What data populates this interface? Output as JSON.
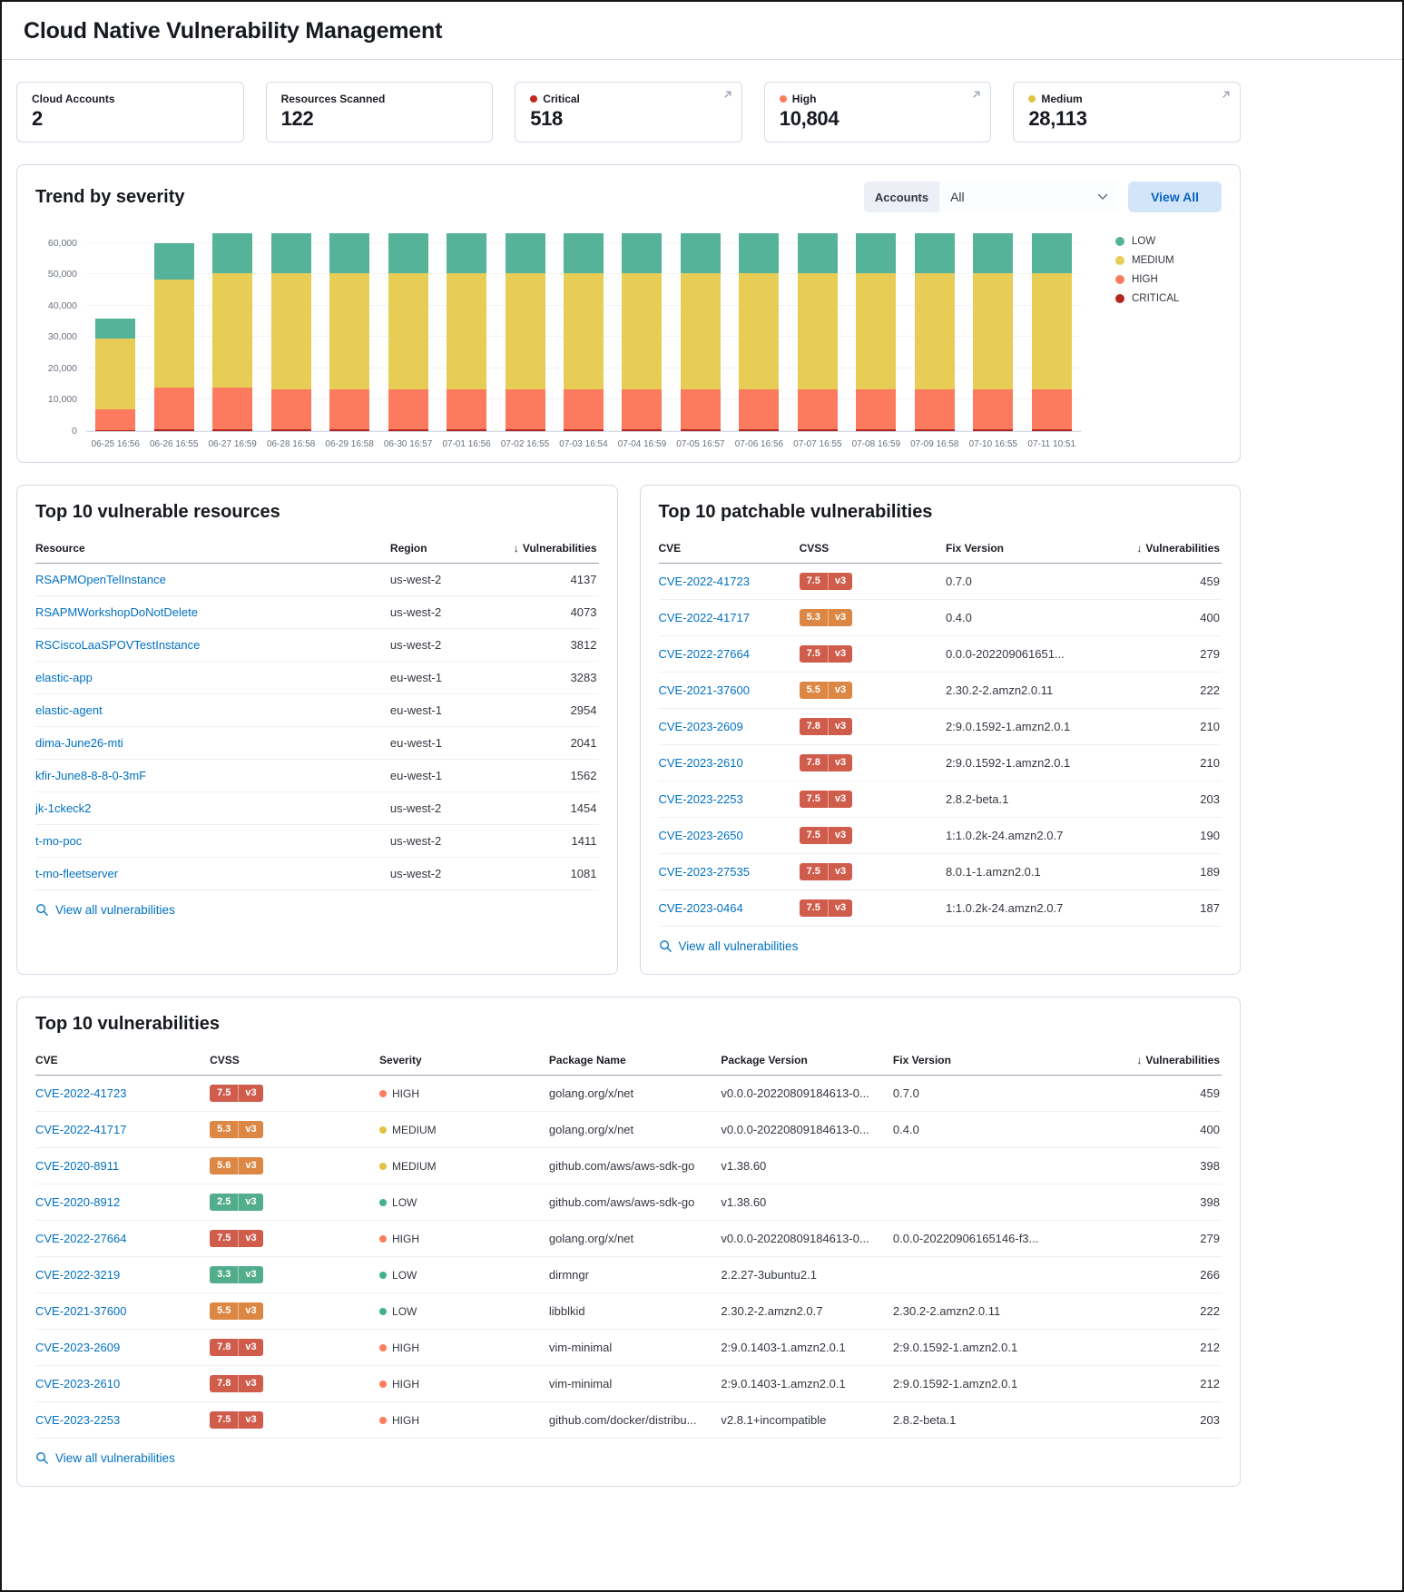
{
  "page": {
    "title": "Cloud Native Vulnerability Management"
  },
  "colors": {
    "link": "#0071c2",
    "badge": {
      "red": "#d05c4c",
      "orange": "#dc8743",
      "green": "#52ad8c"
    },
    "severity_dot": {
      "critical": "#c2281e",
      "high": "#fd7d5d",
      "medium": "#e0c341",
      "low": "#45b08c"
    }
  },
  "stats": [
    {
      "id": "cloud-accounts",
      "label": "Cloud Accounts",
      "value": "2",
      "dot_color": null,
      "has_popout_icon": false
    },
    {
      "id": "resources-scanned",
      "label": "Resources Scanned",
      "value": "122",
      "dot_color": null,
      "has_popout_icon": false
    },
    {
      "id": "critical",
      "label": "Critical",
      "value": "518",
      "dot_color": "#c2281e",
      "has_popout_icon": true
    },
    {
      "id": "high",
      "label": "High",
      "value": "10,804",
      "dot_color": "#fd7d5d",
      "has_popout_icon": true
    },
    {
      "id": "medium",
      "label": "Medium",
      "value": "28,113",
      "dot_color": "#e0c341",
      "has_popout_icon": true
    }
  ],
  "trend": {
    "title": "Trend by severity",
    "accounts_label": "Accounts",
    "accounts_value": "All",
    "view_all_label": "View All",
    "chart_data": {
      "type": "bar",
      "stacked": true,
      "x": [
        "06-25 16:56",
        "06-26 16:55",
        "06-27 16:59",
        "06-28 16:58",
        "06-29 16:58",
        "06-30 16:57",
        "07-01 16:56",
        "07-02 16:55",
        "07-03 16:54",
        "07-04 16:59",
        "07-05 16:57",
        "07-06 16:56",
        "07-07 16:55",
        "07-08 16:59",
        "07-09 16:58",
        "07-10 16:55",
        "07-11 10:51"
      ],
      "series": [
        {
          "name": "CRITICAL",
          "color": "#b4251d",
          "values": [
            400,
            500,
            500,
            500,
            500,
            500,
            500,
            500,
            500,
            500,
            500,
            500,
            500,
            500,
            500,
            500,
            500
          ]
        },
        {
          "name": "HIGH",
          "color": "#fc7b5e",
          "values": [
            6600,
            13500,
            13500,
            12700,
            12700,
            12700,
            12700,
            12700,
            12700,
            12700,
            12700,
            12700,
            12700,
            12700,
            12700,
            12700,
            12700
          ]
        },
        {
          "name": "MEDIUM",
          "color": "#e7cd55",
          "values": [
            22500,
            34500,
            36500,
            37100,
            37100,
            37100,
            37100,
            37100,
            37100,
            37100,
            37100,
            37100,
            37100,
            37100,
            37100,
            37100,
            37100
          ]
        },
        {
          "name": "LOW",
          "color": "#55b399",
          "values": [
            6500,
            11500,
            12500,
            12700,
            12700,
            12700,
            12700,
            12700,
            12700,
            12700,
            12700,
            12700,
            12700,
            12700,
            12700,
            12700,
            12700
          ]
        }
      ],
      "legend": [
        "LOW",
        "MEDIUM",
        "HIGH",
        "CRITICAL"
      ],
      "legend_position": "right",
      "yticks": [
        {
          "value": 0,
          "label": "0"
        },
        {
          "value": 10000,
          "label": "10,000"
        },
        {
          "value": 20000,
          "label": "20,000"
        },
        {
          "value": 30000,
          "label": "30,000"
        },
        {
          "value": 40000,
          "label": "40,000"
        },
        {
          "value": 50000,
          "label": "50,000"
        },
        {
          "value": 60000,
          "label": "60,000"
        }
      ],
      "ylim": [
        0,
        63100
      ]
    }
  },
  "vulnerable_resources": {
    "title": "Top 10 vulnerable resources",
    "view_all_label": "View all vulnerabilities",
    "columns": [
      {
        "key": "resource",
        "label": "Resource",
        "type": "link",
        "width": "63%"
      },
      {
        "key": "region",
        "label": "Region",
        "type": "text",
        "width": "20%"
      },
      {
        "key": "count",
        "label": "Vulnerabilities",
        "type": "text",
        "align": "right",
        "sortable": true,
        "width": "17%"
      }
    ],
    "rows": [
      {
        "resource": "RSAPMOpenTelInstance",
        "region": "us-west-2",
        "count": "4137"
      },
      {
        "resource": "RSAPMWorkshopDoNotDelete",
        "region": "us-west-2",
        "count": "4073"
      },
      {
        "resource": "RSCiscoLaaSPOVTestInstance",
        "region": "us-west-2",
        "count": "3812"
      },
      {
        "resource": "elastic-app",
        "region": "eu-west-1",
        "count": "3283"
      },
      {
        "resource": "elastic-agent",
        "region": "eu-west-1",
        "count": "2954"
      },
      {
        "resource": "dima-June26-mti",
        "region": "eu-west-1",
        "count": "2041"
      },
      {
        "resource": "kfir-June8-8-8-0-3mF",
        "region": "eu-west-1",
        "count": "1562"
      },
      {
        "resource": "jk-1ckeck2",
        "region": "us-west-2",
        "count": "1454"
      },
      {
        "resource": "t-mo-poc",
        "region": "us-west-2",
        "count": "1411"
      },
      {
        "resource": "t-mo-fleetserver",
        "region": "us-west-2",
        "count": "1081"
      }
    ]
  },
  "patchable": {
    "title": "Top 10 patchable vulnerabilities",
    "view_all_label": "View all vulnerabilities",
    "columns": [
      {
        "key": "cve",
        "label": "CVE",
        "type": "link",
        "width": "25%"
      },
      {
        "key": "cvss",
        "label": "CVSS",
        "type": "badge",
        "width": "26%"
      },
      {
        "key": "fix",
        "label": "Fix Version",
        "type": "text",
        "width": "33%"
      },
      {
        "key": "count",
        "label": "Vulnerabilities",
        "type": "text",
        "align": "right",
        "sortable": true,
        "width": "16%"
      }
    ],
    "rows": [
      {
        "cve": "CVE-2022-41723",
        "cvss_score": "7.5",
        "cvss_version": "v3",
        "cvss_level": "red",
        "fix": "0.7.0",
        "count": "459"
      },
      {
        "cve": "CVE-2022-41717",
        "cvss_score": "5.3",
        "cvss_version": "v3",
        "cvss_level": "orange",
        "fix": "0.4.0",
        "count": "400"
      },
      {
        "cve": "CVE-2022-27664",
        "cvss_score": "7.5",
        "cvss_version": "v3",
        "cvss_level": "red",
        "fix": "0.0.0-202209061651...",
        "count": "279"
      },
      {
        "cve": "CVE-2021-37600",
        "cvss_score": "5.5",
        "cvss_version": "v3",
        "cvss_level": "orange",
        "fix": "2.30.2-2.amzn2.0.11",
        "count": "222"
      },
      {
        "cve": "CVE-2023-2609",
        "cvss_score": "7.8",
        "cvss_version": "v3",
        "cvss_level": "red",
        "fix": "2:9.0.1592-1.amzn2.0.1",
        "count": "210"
      },
      {
        "cve": "CVE-2023-2610",
        "cvss_score": "7.8",
        "cvss_version": "v3",
        "cvss_level": "red",
        "fix": "2:9.0.1592-1.amzn2.0.1",
        "count": "210"
      },
      {
        "cve": "CVE-2023-2253",
        "cvss_score": "7.5",
        "cvss_version": "v3",
        "cvss_level": "red",
        "fix": "2.8.2-beta.1",
        "count": "203"
      },
      {
        "cve": "CVE-2023-2650",
        "cvss_score": "7.5",
        "cvss_version": "v3",
        "cvss_level": "red",
        "fix": "1:1.0.2k-24.amzn2.0.7",
        "count": "190"
      },
      {
        "cve": "CVE-2023-27535",
        "cvss_score": "7.5",
        "cvss_version": "v3",
        "cvss_level": "red",
        "fix": "8.0.1-1.amzn2.0.1",
        "count": "189"
      },
      {
        "cve": "CVE-2023-0464",
        "cvss_score": "7.5",
        "cvss_version": "v3",
        "cvss_level": "red",
        "fix": "1:1.0.2k-24.amzn2.0.7",
        "count": "187"
      }
    ]
  },
  "top_vulnerabilities": {
    "title": "Top 10 vulnerabilities",
    "view_all_label": "View all vulnerabilities",
    "columns": [
      {
        "key": "cve",
        "label": "CVE",
        "type": "link",
        "width": "14.7%"
      },
      {
        "key": "cvss",
        "label": "CVSS",
        "type": "badge",
        "width": "14.3%"
      },
      {
        "key": "severity",
        "label": "Severity",
        "type": "severity",
        "width": "14.3%"
      },
      {
        "key": "package",
        "label": "Package Name",
        "type": "text",
        "width": "14.5%"
      },
      {
        "key": "pkg_version",
        "label": "Package Version",
        "type": "text",
        "width": "14.5%"
      },
      {
        "key": "fix",
        "label": "Fix Version",
        "type": "text",
        "width": "16.4%"
      },
      {
        "key": "count",
        "label": "Vulnerabilities",
        "type": "text",
        "align": "right",
        "sortable": true,
        "width": "11.3%"
      }
    ],
    "rows": [
      {
        "cve": "CVE-2022-41723",
        "cvss_score": "7.5",
        "cvss_version": "v3",
        "cvss_level": "red",
        "severity": "HIGH",
        "severity_level": "high",
        "package": "golang.org/x/net",
        "pkg_version": "v0.0.0-20220809184613-0...",
        "fix": "0.7.0",
        "count": "459"
      },
      {
        "cve": "CVE-2022-41717",
        "cvss_score": "5.3",
        "cvss_version": "v3",
        "cvss_level": "orange",
        "severity": "MEDIUM",
        "severity_level": "medium",
        "package": "golang.org/x/net",
        "pkg_version": "v0.0.0-20220809184613-0...",
        "fix": "0.4.0",
        "count": "400"
      },
      {
        "cve": "CVE-2020-8911",
        "cvss_score": "5.6",
        "cvss_version": "v3",
        "cvss_level": "orange",
        "severity": "MEDIUM",
        "severity_level": "medium",
        "package": "github.com/aws/aws-sdk-go",
        "pkg_version": "v1.38.60",
        "fix": "",
        "count": "398"
      },
      {
        "cve": "CVE-2020-8912",
        "cvss_score": "2.5",
        "cvss_version": "v3",
        "cvss_level": "green",
        "severity": "LOW",
        "severity_level": "low",
        "package": "github.com/aws/aws-sdk-go",
        "pkg_version": "v1.38.60",
        "fix": "",
        "count": "398"
      },
      {
        "cve": "CVE-2022-27664",
        "cvss_score": "7.5",
        "cvss_version": "v3",
        "cvss_level": "red",
        "severity": "HIGH",
        "severity_level": "high",
        "package": "golang.org/x/net",
        "pkg_version": "v0.0.0-20220809184613-0...",
        "fix": "0.0.0-20220906165146-f3...",
        "count": "279"
      },
      {
        "cve": "CVE-2022-3219",
        "cvss_score": "3.3",
        "cvss_version": "v3",
        "cvss_level": "green",
        "severity": "LOW",
        "severity_level": "low",
        "package": "dirmngr",
        "pkg_version": "2.2.27-3ubuntu2.1",
        "fix": "",
        "count": "266"
      },
      {
        "cve": "CVE-2021-37600",
        "cvss_score": "5.5",
        "cvss_version": "v3",
        "cvss_level": "orange",
        "severity": "LOW",
        "severity_level": "low",
        "package": "libblkid",
        "pkg_version": "2.30.2-2.amzn2.0.7",
        "fix": "2.30.2-2.amzn2.0.11",
        "count": "222"
      },
      {
        "cve": "CVE-2023-2609",
        "cvss_score": "7.8",
        "cvss_version": "v3",
        "cvss_level": "red",
        "severity": "HIGH",
        "severity_level": "high",
        "package": "vim-minimal",
        "pkg_version": "2:9.0.1403-1.amzn2.0.1",
        "fix": "2:9.0.1592-1.amzn2.0.1",
        "count": "212"
      },
      {
        "cve": "CVE-2023-2610",
        "cvss_score": "7.8",
        "cvss_version": "v3",
        "cvss_level": "red",
        "severity": "HIGH",
        "severity_level": "high",
        "package": "vim-minimal",
        "pkg_version": "2:9.0.1403-1.amzn2.0.1",
        "fix": "2:9.0.1592-1.amzn2.0.1",
        "count": "212"
      },
      {
        "cve": "CVE-2023-2253",
        "cvss_score": "7.5",
        "cvss_version": "v3",
        "cvss_level": "red",
        "severity": "HIGH",
        "severity_level": "high",
        "package": "github.com/docker/distribu...",
        "pkg_version": "v2.8.1+incompatible",
        "fix": "2.8.2-beta.1",
        "count": "203"
      }
    ]
  }
}
